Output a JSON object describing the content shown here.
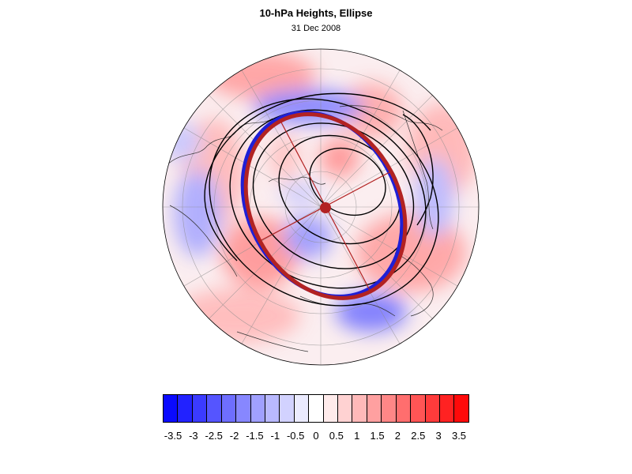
{
  "header": {
    "title": "10-hPa Heights, Ellipse",
    "date": "31 Dec 2008"
  },
  "colors": {
    "ellipse": "#b22222",
    "ellipse_shadow": "#1f1fd6",
    "contour": "#000000",
    "negative_max": "#0000ff",
    "positive_max": "#ff0000",
    "neutral": "#ffffff"
  },
  "map": {
    "projection": "orthographic polar",
    "center_marker": "ellipse-center"
  },
  "colorbar": {
    "swatches": [
      "#0a0aff",
      "#2222ff",
      "#3b3bff",
      "#5555ff",
      "#6e6eff",
      "#8787ff",
      "#a0a0ff",
      "#b9b9ff",
      "#d2d2ff",
      "#ebebff",
      "#ffffff",
      "#ffebeb",
      "#ffd2d2",
      "#ffb9b9",
      "#ffa0a0",
      "#ff8787",
      "#ff6e6e",
      "#ff5555",
      "#ff3b3b",
      "#ff2222",
      "#ff0a0a"
    ],
    "tick_labels": [
      "-3.5",
      "-3",
      "-2.5",
      "-2",
      "-1.5",
      "-1",
      "-0.5",
      "0",
      "0.5",
      "1",
      "1.5",
      "2",
      "2.5",
      "3",
      "3.5"
    ]
  }
}
